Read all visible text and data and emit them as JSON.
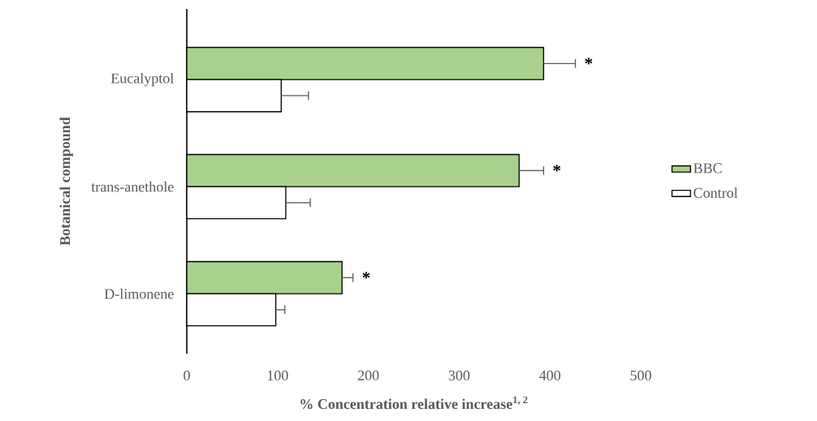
{
  "chart_data": {
    "type": "bar",
    "orientation": "horizontal",
    "xlabel": "% Concentration relative increase$^{1, 2}$",
    "ylabel": "Botanical compound",
    "categories": [
      "Eucalyptol",
      "trans-anethole",
      "D-limonene"
    ],
    "series": [
      {
        "name": "BBC",
        "color": "#a9d18e",
        "values": [
          393,
          366,
          171
        ],
        "errors": [
          35,
          27,
          12
        ]
      },
      {
        "name": "Control",
        "color": "#ffffff",
        "values": [
          104,
          109,
          98
        ],
        "errors": [
          30,
          27,
          10
        ]
      }
    ],
    "xlim": [
      0,
      500
    ],
    "xticks": [
      0,
      100,
      200,
      300,
      400,
      500
    ],
    "grid": false,
    "legend": "right",
    "annotations": [
      "*",
      "*",
      "*"
    ]
  }
}
